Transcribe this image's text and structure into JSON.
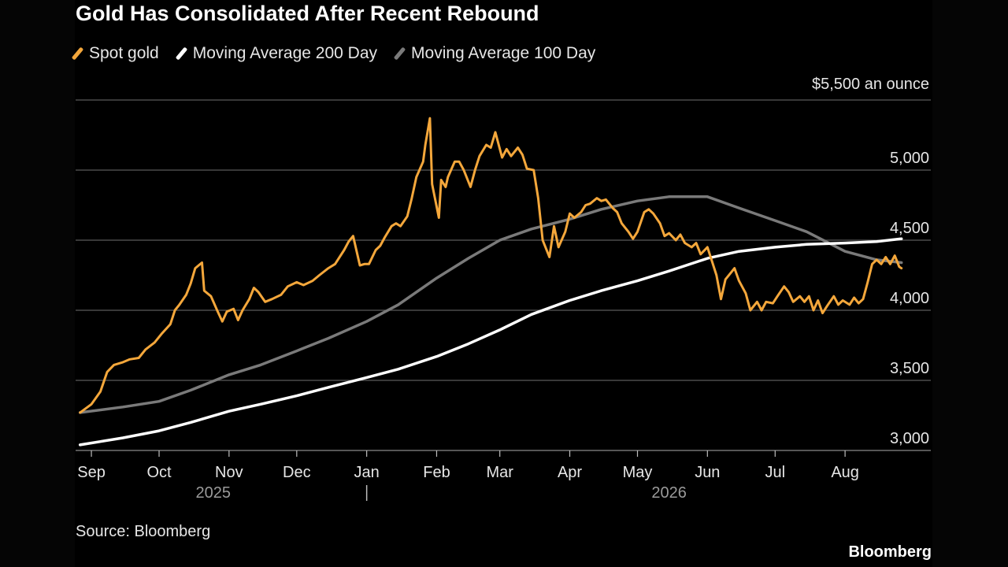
{
  "title": "Gold Has Consolidated After Recent Rebound",
  "unit_label": "$5,500 an ounce",
  "source": "Source: Bloomberg",
  "brand": "Bloomberg",
  "colors": {
    "spot": "#f4a73b",
    "ma200": "#ffffff",
    "ma100": "#7a7a7a",
    "grid": "#5a5a5a",
    "background": "#000000"
  },
  "legend": [
    {
      "label": "Spot gold",
      "color": "#f4a73b"
    },
    {
      "label": "Moving Average 200 Day",
      "color": "#ffffff"
    },
    {
      "label": "Moving Average 100 Day",
      "color": "#7a7a7a"
    }
  ],
  "chart_data": {
    "type": "line",
    "ylim": [
      3000,
      5500
    ],
    "y_ticks": [
      {
        "value": 3000,
        "label": "3,000"
      },
      {
        "value": 3500,
        "label": "3,500"
      },
      {
        "value": 4000,
        "label": "4,000"
      },
      {
        "value": 4500,
        "label": "4,500"
      },
      {
        "value": 5000,
        "label": "5,000"
      }
    ],
    "x_range": [
      "2025-08-25",
      "2026-09-08"
    ],
    "month_ticks": [
      {
        "date": "2025-09-01",
        "label": "Sep"
      },
      {
        "date": "2025-10-01",
        "label": "Oct"
      },
      {
        "date": "2025-11-01",
        "label": "Nov"
      },
      {
        "date": "2025-12-01",
        "label": "Dec"
      },
      {
        "date": "2026-01-01",
        "label": "Jan"
      },
      {
        "date": "2026-02-01",
        "label": "Feb"
      },
      {
        "date": "2026-03-01",
        "label": "Mar"
      },
      {
        "date": "2026-04-01",
        "label": "Apr"
      },
      {
        "date": "2026-05-01",
        "label": "May"
      },
      {
        "date": "2026-06-01",
        "label": "Jun"
      },
      {
        "date": "2026-07-01",
        "label": "Jul"
      },
      {
        "date": "2026-08-01",
        "label": "Aug"
      }
    ],
    "year_labels": [
      {
        "date": "2025-10-25",
        "label": "2025"
      },
      {
        "date": "2026-05-15",
        "label": "2026"
      }
    ],
    "year_divider": "2026-01-01",
    "series": [
      {
        "name": "Spot gold",
        "color": "#f4a73b",
        "points": [
          [
            "2025-08-27",
            3270
          ],
          [
            "2025-09-01",
            3330
          ],
          [
            "2025-09-05",
            3420
          ],
          [
            "2025-09-08",
            3560
          ],
          [
            "2025-09-11",
            3610
          ],
          [
            "2025-09-15",
            3630
          ],
          [
            "2025-09-18",
            3650
          ],
          [
            "2025-09-22",
            3660
          ],
          [
            "2025-09-25",
            3720
          ],
          [
            "2025-09-29",
            3770
          ],
          [
            "2025-10-02",
            3830
          ],
          [
            "2025-10-06",
            3900
          ],
          [
            "2025-10-08",
            4000
          ],
          [
            "2025-10-10",
            4040
          ],
          [
            "2025-10-13",
            4110
          ],
          [
            "2025-10-15",
            4190
          ],
          [
            "2025-10-17",
            4300
          ],
          [
            "2025-10-20",
            4340
          ],
          [
            "2025-10-21",
            4140
          ],
          [
            "2025-10-24",
            4100
          ],
          [
            "2025-10-27",
            3990
          ],
          [
            "2025-10-29",
            3920
          ],
          [
            "2025-10-31",
            3990
          ],
          [
            "2025-11-03",
            4010
          ],
          [
            "2025-11-05",
            3930
          ],
          [
            "2025-11-07",
            4000
          ],
          [
            "2025-11-10",
            4080
          ],
          [
            "2025-11-12",
            4160
          ],
          [
            "2025-11-14",
            4130
          ],
          [
            "2025-11-17",
            4060
          ],
          [
            "2025-11-20",
            4080
          ],
          [
            "2025-11-24",
            4110
          ],
          [
            "2025-11-27",
            4170
          ],
          [
            "2025-12-01",
            4200
          ],
          [
            "2025-12-04",
            4180
          ],
          [
            "2025-12-08",
            4210
          ],
          [
            "2025-12-11",
            4250
          ],
          [
            "2025-12-15",
            4300
          ],
          [
            "2025-12-18",
            4330
          ],
          [
            "2025-12-22",
            4430
          ],
          [
            "2025-12-24",
            4490
          ],
          [
            "2025-12-26",
            4530
          ],
          [
            "2025-12-29",
            4320
          ],
          [
            "2025-12-31",
            4330
          ],
          [
            "2026-01-02",
            4330
          ],
          [
            "2026-01-05",
            4430
          ],
          [
            "2026-01-07",
            4460
          ],
          [
            "2026-01-09",
            4520
          ],
          [
            "2026-01-12",
            4600
          ],
          [
            "2026-01-14",
            4620
          ],
          [
            "2026-01-16",
            4600
          ],
          [
            "2026-01-19",
            4670
          ],
          [
            "2026-01-21",
            4800
          ],
          [
            "2026-01-23",
            4950
          ],
          [
            "2026-01-26",
            5060
          ],
          [
            "2026-01-27",
            5180
          ],
          [
            "2026-01-29",
            5370
          ],
          [
            "2026-01-30",
            4900
          ],
          [
            "2026-02-02",
            4660
          ],
          [
            "2026-02-03",
            4930
          ],
          [
            "2026-02-05",
            4880
          ],
          [
            "2026-02-06",
            4950
          ],
          [
            "2026-02-09",
            5060
          ],
          [
            "2026-02-11",
            5060
          ],
          [
            "2026-02-13",
            5000
          ],
          [
            "2026-02-16",
            4880
          ],
          [
            "2026-02-18",
            5000
          ],
          [
            "2026-02-20",
            5100
          ],
          [
            "2026-02-23",
            5180
          ],
          [
            "2026-02-25",
            5160
          ],
          [
            "2026-02-27",
            5270
          ],
          [
            "2026-03-02",
            5090
          ],
          [
            "2026-03-04",
            5150
          ],
          [
            "2026-03-06",
            5100
          ],
          [
            "2026-03-09",
            5160
          ],
          [
            "2026-03-11",
            5110
          ],
          [
            "2026-03-13",
            5010
          ],
          [
            "2026-03-16",
            5000
          ],
          [
            "2026-03-18",
            4800
          ],
          [
            "2026-03-20",
            4500
          ],
          [
            "2026-03-23",
            4380
          ],
          [
            "2026-03-25",
            4600
          ],
          [
            "2026-03-27",
            4450
          ],
          [
            "2026-03-30",
            4560
          ],
          [
            "2026-04-01",
            4690
          ],
          [
            "2026-04-03",
            4660
          ],
          [
            "2026-04-06",
            4700
          ],
          [
            "2026-04-08",
            4750
          ],
          [
            "2026-04-10",
            4760
          ],
          [
            "2026-04-13",
            4800
          ],
          [
            "2026-04-15",
            4780
          ],
          [
            "2026-04-17",
            4790
          ],
          [
            "2026-04-20",
            4730
          ],
          [
            "2026-04-22",
            4700
          ],
          [
            "2026-04-24",
            4620
          ],
          [
            "2026-04-27",
            4560
          ],
          [
            "2026-04-29",
            4510
          ],
          [
            "2026-05-01",
            4560
          ],
          [
            "2026-05-04",
            4700
          ],
          [
            "2026-05-06",
            4720
          ],
          [
            "2026-05-08",
            4690
          ],
          [
            "2026-05-11",
            4620
          ],
          [
            "2026-05-13",
            4530
          ],
          [
            "2026-05-15",
            4550
          ],
          [
            "2026-05-18",
            4500
          ],
          [
            "2026-05-20",
            4540
          ],
          [
            "2026-05-22",
            4480
          ],
          [
            "2026-05-25",
            4450
          ],
          [
            "2026-05-27",
            4480
          ],
          [
            "2026-05-29",
            4400
          ],
          [
            "2026-06-01",
            4450
          ],
          [
            "2026-06-03",
            4350
          ],
          [
            "2026-06-05",
            4250
          ],
          [
            "2026-06-07",
            4080
          ],
          [
            "2026-06-09",
            4220
          ],
          [
            "2026-06-11",
            4260
          ],
          [
            "2026-06-13",
            4300
          ],
          [
            "2026-06-15",
            4210
          ],
          [
            "2026-06-18",
            4120
          ],
          [
            "2026-06-20",
            4000
          ],
          [
            "2026-06-23",
            4060
          ],
          [
            "2026-06-25",
            4000
          ],
          [
            "2026-06-27",
            4060
          ],
          [
            "2026-06-30",
            4050
          ],
          [
            "2026-07-02",
            4100
          ],
          [
            "2026-07-05",
            4170
          ],
          [
            "2026-07-07",
            4130
          ],
          [
            "2026-07-09",
            4060
          ],
          [
            "2026-07-12",
            4100
          ],
          [
            "2026-07-14",
            4060
          ],
          [
            "2026-07-16",
            4100
          ],
          [
            "2026-07-18",
            4000
          ],
          [
            "2026-07-20",
            4070
          ],
          [
            "2026-07-22",
            3980
          ],
          [
            "2026-07-24",
            4030
          ],
          [
            "2026-07-27",
            4100
          ],
          [
            "2026-07-29",
            4040
          ],
          [
            "2026-07-31",
            4070
          ],
          [
            "2026-08-03",
            4040
          ],
          [
            "2026-08-05",
            4090
          ],
          [
            "2026-08-07",
            4050
          ],
          [
            "2026-08-09",
            4080
          ],
          [
            "2026-08-11",
            4200
          ],
          [
            "2026-08-13",
            4330
          ],
          [
            "2026-08-15",
            4360
          ],
          [
            "2026-08-17",
            4330
          ],
          [
            "2026-08-19",
            4380
          ],
          [
            "2026-08-21",
            4330
          ],
          [
            "2026-08-23",
            4390
          ],
          [
            "2026-08-25",
            4310
          ],
          [
            "2026-08-26",
            4300
          ]
        ]
      },
      {
        "name": "Moving Average 200 Day",
        "color": "#ffffff",
        "points": [
          [
            "2025-08-27",
            3040
          ],
          [
            "2025-09-15",
            3090
          ],
          [
            "2025-10-01",
            3140
          ],
          [
            "2025-10-15",
            3200
          ],
          [
            "2025-11-01",
            3280
          ],
          [
            "2025-11-15",
            3330
          ],
          [
            "2025-12-01",
            3390
          ],
          [
            "2025-12-15",
            3450
          ],
          [
            "2026-01-01",
            3520
          ],
          [
            "2026-01-15",
            3580
          ],
          [
            "2026-02-01",
            3670
          ],
          [
            "2026-02-15",
            3760
          ],
          [
            "2026-03-01",
            3860
          ],
          [
            "2026-03-15",
            3970
          ],
          [
            "2026-04-01",
            4070
          ],
          [
            "2026-04-15",
            4140
          ],
          [
            "2026-05-01",
            4210
          ],
          [
            "2026-05-15",
            4280
          ],
          [
            "2026-06-01",
            4370
          ],
          [
            "2026-06-15",
            4420
          ],
          [
            "2026-07-01",
            4450
          ],
          [
            "2026-07-15",
            4470
          ],
          [
            "2026-08-01",
            4480
          ],
          [
            "2026-08-15",
            4490
          ],
          [
            "2026-08-26",
            4510
          ]
        ]
      },
      {
        "name": "Moving Average 100 Day",
        "color": "#7a7a7a",
        "points": [
          [
            "2025-08-27",
            3270
          ],
          [
            "2025-09-15",
            3310
          ],
          [
            "2025-10-01",
            3350
          ],
          [
            "2025-10-15",
            3430
          ],
          [
            "2025-11-01",
            3540
          ],
          [
            "2025-11-15",
            3610
          ],
          [
            "2025-12-01",
            3710
          ],
          [
            "2025-12-15",
            3800
          ],
          [
            "2026-01-01",
            3920
          ],
          [
            "2026-01-15",
            4040
          ],
          [
            "2026-02-01",
            4230
          ],
          [
            "2026-02-15",
            4370
          ],
          [
            "2026-03-01",
            4500
          ],
          [
            "2026-03-15",
            4580
          ],
          [
            "2026-04-01",
            4650
          ],
          [
            "2026-04-15",
            4720
          ],
          [
            "2026-05-01",
            4780
          ],
          [
            "2026-05-15",
            4810
          ],
          [
            "2026-06-01",
            4810
          ],
          [
            "2026-06-15",
            4730
          ],
          [
            "2026-07-01",
            4640
          ],
          [
            "2026-07-15",
            4560
          ],
          [
            "2026-08-01",
            4420
          ],
          [
            "2026-08-15",
            4360
          ],
          [
            "2026-08-26",
            4340
          ]
        ]
      }
    ]
  }
}
